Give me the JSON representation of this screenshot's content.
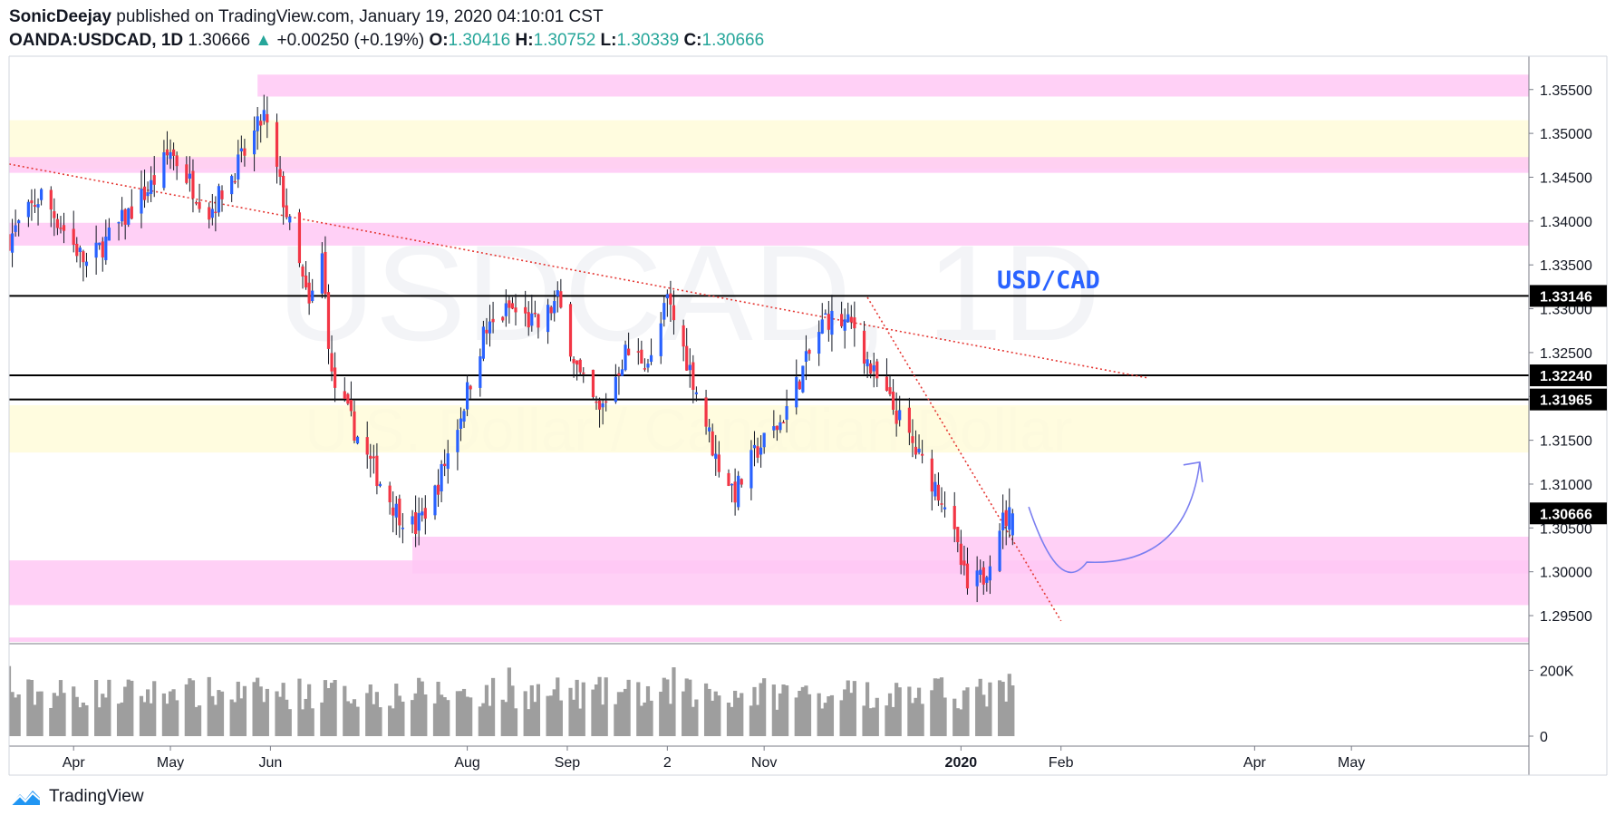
{
  "header": {
    "author": "SonicDeejay",
    "published": "published on TradingView.com, January 19, 2020 04:10:01 CST",
    "symbol": "OANDA:USDCAD, 1D",
    "last": "1.30666",
    "change_arrow": "▲",
    "change": "+0.00250 (+0.19%)",
    "o_label": "O:",
    "o": "1.30416",
    "h_label": "H:",
    "h": "1.30752",
    "l_label": "L:",
    "l": "1.30339",
    "c_label": "C:",
    "c": "1.30666"
  },
  "footer": {
    "brand": "TradingView",
    "logo_icon": "tradingview-logo-icon"
  },
  "chart_data": {
    "type": "candlestick",
    "symbol": "OANDA:USDCAD",
    "interval": "1D",
    "annotation": "USD/CAD",
    "watermark": {
      "line1": "USDCAD, 1D",
      "line2": "U.S. Dollar / Canadian Dollar"
    },
    "price_axis": {
      "ylim": [
        1.2918,
        1.3588
      ],
      "ticks": [
        "1.35500",
        "1.35000",
        "1.34500",
        "1.34000",
        "1.33500",
        "1.33000",
        "1.32500",
        "1.32000",
        "1.31500",
        "1.31000",
        "1.30500",
        "1.30000",
        "1.29500"
      ]
    },
    "price_labels": [
      {
        "value": 1.33146,
        "text": "1.33146"
      },
      {
        "value": 1.3224,
        "text": "1.32240"
      },
      {
        "value": 1.31965,
        "text": "1.31965"
      },
      {
        "value": 1.30666,
        "text": "1.30666"
      }
    ],
    "horizontal_lines": [
      1.33146,
      1.3224,
      1.31965
    ],
    "x_axis": {
      "labels": [
        {
          "text": "Apr",
          "date": "2019-04-01"
        },
        {
          "text": "May",
          "date": "2019-05-01"
        },
        {
          "text": "Jun",
          "date": "2019-06-01"
        },
        {
          "text": "Aug",
          "date": "2019-08-01"
        },
        {
          "text": "Sep",
          "date": "2019-09-01"
        },
        {
          "text": "2",
          "date": "2019-10-02"
        },
        {
          "text": "Nov",
          "date": "2019-11-01"
        },
        {
          "text": "2020",
          "date": "2020-01-01"
        },
        {
          "text": "Feb",
          "date": "2020-02-01"
        },
        {
          "text": "Apr",
          "date": "2020-04-01"
        },
        {
          "text": "May",
          "date": "2020-05-01"
        }
      ],
      "range": [
        "2019-03-12",
        "2020-06-25"
      ]
    },
    "zones": [
      {
        "kind": "resistance",
        "color": "#ffc8f4",
        "from": "2019-05-28",
        "to": "2020-06-25",
        "y": [
          1.3542,
          1.3567
        ]
      },
      {
        "kind": "neutral",
        "color": "#fffbd9",
        "from": "2019-03-12",
        "to": "2020-06-25",
        "y": [
          1.346,
          1.3515
        ]
      },
      {
        "kind": "resistance",
        "color": "#ffc8f4",
        "from": "2019-03-12",
        "to": "2020-06-25",
        "y": [
          1.3455,
          1.3473
        ]
      },
      {
        "kind": "resistance",
        "color": "#ffc8f4",
        "from": "2019-03-12",
        "to": "2020-06-25",
        "y": [
          1.3372,
          1.3398
        ]
      },
      {
        "kind": "neutral",
        "color": "#fffbd9",
        "from": "2019-03-12",
        "to": "2020-06-25",
        "y": [
          1.3136,
          1.319
        ]
      },
      {
        "kind": "support",
        "color": "#ffc8f4",
        "from": "2019-07-15",
        "to": "2020-06-25",
        "y": [
          1.2998,
          1.304
        ]
      },
      {
        "kind": "support",
        "color": "#ffc8f4",
        "from": "2019-03-12",
        "to": "2020-06-25",
        "y": [
          1.2962,
          1.3013
        ]
      },
      {
        "kind": "support",
        "color": "#ffc8f4",
        "from": "2019-03-12",
        "to": "2020-06-25",
        "y": [
          1.292,
          1.2925
        ]
      }
    ],
    "trendlines": [
      {
        "style": "dotted",
        "color": "#e53935",
        "from": {
          "date": "2019-03-12",
          "price": 1.3465
        },
        "to": {
          "date": "2020-02-28",
          "price": 1.3221
        }
      },
      {
        "style": "dotted",
        "color": "#e53935",
        "from": {
          "date": "2019-12-03",
          "price": 1.3313
        },
        "to": {
          "date": "2020-02-01",
          "price": 1.2944
        }
      }
    ],
    "projection": {
      "color": "#7b7ff0",
      "points": [
        {
          "date": "2020-01-22",
          "price": 1.3074
        },
        {
          "date": "2020-02-09",
          "price": 1.3011
        },
        {
          "date": "2020-03-15",
          "price": 1.3125
        }
      ]
    },
    "volume_axis": {
      "ticks": [
        {
          "value": 200000,
          "text": "200K"
        },
        {
          "value": 0,
          "text": "0"
        }
      ],
      "max": 270000
    },
    "colors": {
      "up": "#2962ff",
      "down": "#f23645",
      "wick": "#131722",
      "volume": "#9e9e9e"
    },
    "anchors": [
      {
        "date": "2019-03-12",
        "close": 1.338
      },
      {
        "date": "2019-03-22",
        "close": 1.343
      },
      {
        "date": "2019-04-05",
        "close": 1.335
      },
      {
        "date": "2019-04-25",
        "close": 1.344
      },
      {
        "date": "2019-05-01",
        "close": 1.348
      },
      {
        "date": "2019-05-13",
        "close": 1.341
      },
      {
        "date": "2019-05-23",
        "close": 1.347
      },
      {
        "date": "2019-05-30",
        "close": 1.352
      },
      {
        "date": "2019-06-04",
        "close": 1.344
      },
      {
        "date": "2019-06-13",
        "close": 1.33
      },
      {
        "date": "2019-06-17",
        "close": 1.336
      },
      {
        "date": "2019-06-20",
        "close": 1.322
      },
      {
        "date": "2019-07-01",
        "close": 1.313
      },
      {
        "date": "2019-07-10",
        "close": 1.307
      },
      {
        "date": "2019-07-16",
        "close": 1.305
      },
      {
        "date": "2019-07-22",
        "close": 1.309
      },
      {
        "date": "2019-07-30",
        "close": 1.318
      },
      {
        "date": "2019-08-06",
        "close": 1.327
      },
      {
        "date": "2019-08-14",
        "close": 1.33
      },
      {
        "date": "2019-08-23",
        "close": 1.328
      },
      {
        "date": "2019-08-29",
        "close": 1.331
      },
      {
        "date": "2019-09-05",
        "close": 1.322
      },
      {
        "date": "2019-09-11",
        "close": 1.318
      },
      {
        "date": "2019-09-19",
        "close": 1.325
      },
      {
        "date": "2019-09-27",
        "close": 1.324
      },
      {
        "date": "2019-10-02",
        "close": 1.331
      },
      {
        "date": "2019-10-10",
        "close": 1.322
      },
      {
        "date": "2019-10-17",
        "close": 1.313
      },
      {
        "date": "2019-10-23",
        "close": 1.309
      },
      {
        "date": "2019-10-30",
        "close": 1.314
      },
      {
        "date": "2019-11-06",
        "close": 1.317
      },
      {
        "date": "2019-11-13",
        "close": 1.323
      },
      {
        "date": "2019-11-20",
        "close": 1.329
      },
      {
        "date": "2019-11-29",
        "close": 1.328
      },
      {
        "date": "2019-12-04",
        "close": 1.323
      },
      {
        "date": "2019-12-12",
        "close": 1.318
      },
      {
        "date": "2019-12-19",
        "close": 1.313
      },
      {
        "date": "2019-12-27",
        "close": 1.308
      },
      {
        "date": "2020-01-03",
        "close": 1.298
      },
      {
        "date": "2020-01-08",
        "close": 1.2995
      },
      {
        "date": "2020-01-13",
        "close": 1.3055
      },
      {
        "date": "2020-01-17",
        "close": 1.30666
      }
    ],
    "range_start": "2019-03-12",
    "range_end": "2020-01-17"
  }
}
